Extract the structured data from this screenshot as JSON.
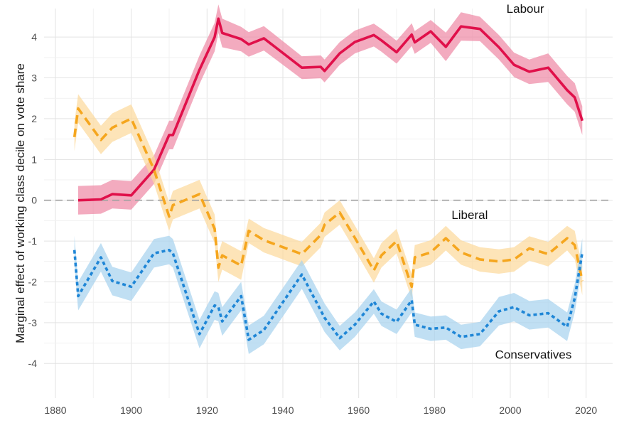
{
  "chart_data": {
    "type": "line",
    "title": "",
    "xlabel": "",
    "ylabel": "Marginal effect of working class decile on vote share",
    "xlim": [
      1877,
      2027
    ],
    "ylim": [
      -4.85,
      4.7
    ],
    "xticks": [
      1880,
      1900,
      1920,
      1940,
      1960,
      1980,
      2000,
      2020
    ],
    "yticks": [
      -4,
      -3,
      -2,
      -1,
      0,
      1,
      2,
      3,
      4
    ],
    "grid": true,
    "legend": "none",
    "reference_line": {
      "y": 0,
      "style": "dashed",
      "color": "#a0a0a0"
    },
    "series": [
      {
        "name": "Labour",
        "color": "#e0104a",
        "band_color": "#ef8aa6",
        "line_style": "solid",
        "x": [
          1886,
          1892,
          1895,
          1900,
          1906,
          1910,
          1911,
          1918,
          1922,
          1923,
          1924,
          1929,
          1931,
          1935,
          1945,
          1950,
          1951,
          1955,
          1959,
          1964,
          1966,
          1970,
          1974,
          1974.8,
          1979,
          1983,
          1987,
          1992,
          1997,
          2001,
          2005,
          2010,
          2015,
          2017,
          2019
        ],
        "y": [
          0.0,
          0.02,
          0.15,
          0.12,
          0.75,
          1.6,
          1.6,
          3.2,
          4.0,
          4.45,
          4.1,
          3.95,
          3.82,
          3.97,
          3.25,
          3.27,
          3.17,
          3.6,
          3.88,
          4.05,
          3.92,
          3.63,
          4.06,
          3.87,
          4.14,
          3.76,
          4.26,
          4.2,
          3.75,
          3.32,
          3.15,
          3.25,
          2.7,
          2.52,
          1.95
        ],
        "band_halfwidth": [
          0.35,
          0.35,
          0.35,
          0.35,
          0.35,
          0.35,
          0.35,
          0.35,
          0.35,
          0.35,
          0.35,
          0.3,
          0.3,
          0.3,
          0.28,
          0.28,
          0.28,
          0.28,
          0.28,
          0.28,
          0.28,
          0.28,
          0.28,
          0.28,
          0.28,
          0.35,
          0.35,
          0.3,
          0.3,
          0.3,
          0.3,
          0.35,
          0.35,
          0.35,
          0.35
        ]
      },
      {
        "name": "Liberal",
        "color": "#f5a61e",
        "band_color": "#fcd99c",
        "line_style": "dashed",
        "x": [
          1885,
          1886,
          1892,
          1895,
          1900,
          1906,
          1910,
          1911,
          1918,
          1922,
          1923,
          1924,
          1929,
          1931,
          1935,
          1945,
          1950,
          1951,
          1955,
          1959,
          1964,
          1966,
          1970,
          1974,
          1974.8,
          1979,
          1983,
          1987,
          1992,
          1997,
          2001,
          2005,
          2010,
          2015,
          2017,
          2019
        ],
        "y": [
          1.55,
          2.25,
          1.48,
          1.78,
          2.0,
          0.75,
          -0.4,
          -0.12,
          0.15,
          -0.7,
          -1.65,
          -1.35,
          -1.6,
          -0.75,
          -0.98,
          -1.32,
          -0.85,
          -0.6,
          -0.3,
          -0.92,
          -1.72,
          -1.35,
          -1.0,
          -2.12,
          -1.4,
          -1.28,
          -0.93,
          -1.28,
          -1.45,
          -1.5,
          -1.45,
          -1.18,
          -1.32,
          -0.93,
          -1.1,
          -1.98
        ],
        "band_halfwidth": [
          0.35,
          0.35,
          0.35,
          0.35,
          0.35,
          0.35,
          0.35,
          0.35,
          0.35,
          0.35,
          0.35,
          0.35,
          0.35,
          0.3,
          0.3,
          0.3,
          0.3,
          0.3,
          0.3,
          0.3,
          0.3,
          0.3,
          0.3,
          0.3,
          0.3,
          0.3,
          0.3,
          0.3,
          0.3,
          0.3,
          0.3,
          0.3,
          0.3,
          0.3,
          0.35,
          0.35
        ]
      },
      {
        "name": "Conservatives",
        "color": "#1f86d6",
        "band_color": "#a7d2ef",
        "line_style": "dotted",
        "x": [
          1885,
          1886,
          1892,
          1895,
          1900,
          1906,
          1910,
          1911,
          1918,
          1922,
          1923,
          1924,
          1929,
          1931,
          1935,
          1945,
          1950,
          1951,
          1955,
          1959,
          1964,
          1966,
          1970,
          1974,
          1974.8,
          1979,
          1983,
          1987,
          1992,
          1997,
          2001,
          2005,
          2010,
          2015,
          2017,
          2019
        ],
        "y": [
          -1.22,
          -2.35,
          -1.4,
          -1.98,
          -2.12,
          -1.3,
          -1.22,
          -1.3,
          -3.28,
          -2.58,
          -2.62,
          -2.97,
          -2.35,
          -3.42,
          -3.18,
          -1.82,
          -2.7,
          -2.88,
          -3.38,
          -3.05,
          -2.48,
          -2.78,
          -2.98,
          -2.45,
          -3.05,
          -3.15,
          -3.12,
          -3.35,
          -3.28,
          -2.72,
          -2.62,
          -2.82,
          -2.77,
          -3.1,
          -2.4,
          -1.28
        ],
        "band_halfwidth": [
          0.35,
          0.35,
          0.35,
          0.35,
          0.35,
          0.35,
          0.35,
          0.35,
          0.35,
          0.35,
          0.35,
          0.35,
          0.35,
          0.35,
          0.35,
          0.35,
          0.35,
          0.35,
          0.3,
          0.3,
          0.3,
          0.3,
          0.3,
          0.3,
          0.3,
          0.3,
          0.3,
          0.3,
          0.3,
          0.35,
          0.35,
          0.35,
          0.35,
          0.35,
          0.35,
          0.35
        ]
      }
    ],
    "annotations": [
      {
        "text": "Labour",
        "x": 1999,
        "y": 4.7
      },
      {
        "text": "Liberal",
        "x": 1984.5,
        "y": -0.35
      },
      {
        "text": "Conservatives",
        "x": 1996,
        "y": -3.78
      }
    ]
  }
}
